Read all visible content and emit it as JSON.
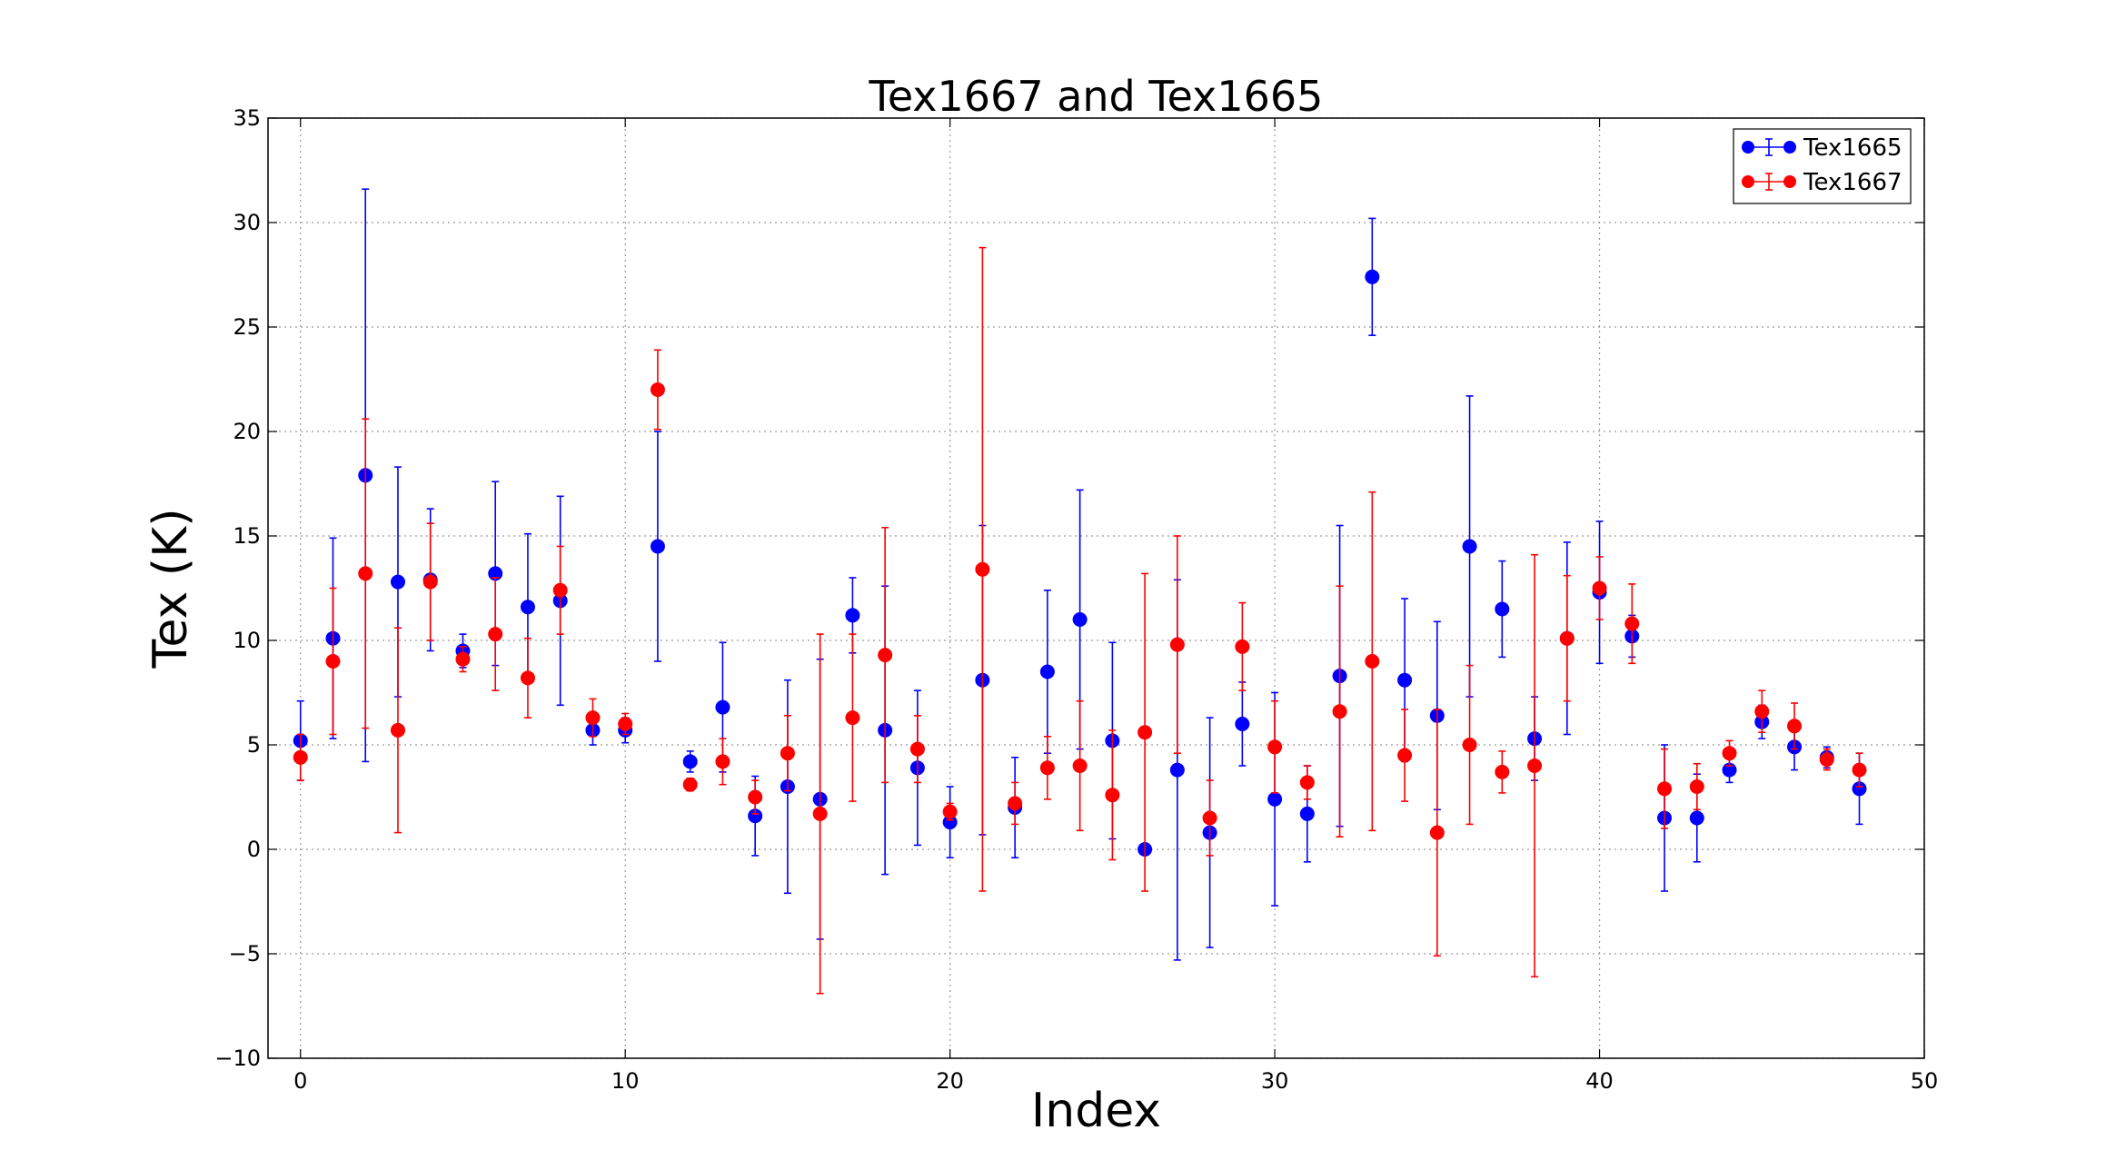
{
  "chart_data": {
    "type": "scatter",
    "title": "Tex1667 and Tex1665",
    "xlabel": "Index",
    "ylabel": "Tex (K)",
    "xlim": [
      -1,
      50
    ],
    "ylim": [
      -10,
      35
    ],
    "xticks": [
      0,
      10,
      20,
      30,
      40,
      50
    ],
    "yticks": [
      -10,
      -5,
      0,
      5,
      10,
      15,
      20,
      25,
      30,
      35
    ],
    "grid": true,
    "legend_position": "top-right",
    "series": [
      {
        "name": "Tex1665",
        "color": "#0000ff",
        "x": [
          0,
          1,
          2,
          3,
          4,
          5,
          6,
          7,
          8,
          9,
          10,
          11,
          12,
          13,
          14,
          15,
          16,
          17,
          18,
          19,
          20,
          21,
          22,
          23,
          24,
          25,
          26,
          27,
          28,
          29,
          30,
          31,
          32,
          33,
          34,
          35,
          36,
          37,
          38,
          39,
          40,
          41,
          42,
          43,
          44,
          45,
          46,
          47,
          48
        ],
        "y": [
          5.2,
          10.1,
          17.9,
          12.8,
          12.9,
          9.5,
          13.2,
          11.6,
          11.9,
          5.7,
          5.7,
          14.5,
          4.2,
          6.8,
          1.6,
          3.0,
          2.4,
          11.2,
          5.7,
          3.9,
          1.3,
          8.1,
          2.0,
          8.5,
          11.0,
          5.2,
          0.0,
          3.8,
          0.8,
          6.0,
          2.4,
          1.7,
          8.3,
          27.4,
          8.1,
          6.4,
          14.5,
          11.5,
          5.3,
          10.1,
          12.3,
          10.2,
          1.5,
          1.5,
          3.8,
          6.1,
          4.9,
          4.4,
          2.9
        ],
        "yerr": [
          1.9,
          4.8,
          13.7,
          5.5,
          3.4,
          0.8,
          4.4,
          3.5,
          5.0,
          0.7,
          0.6,
          5.5,
          0.5,
          3.1,
          1.9,
          5.1,
          6.7,
          1.8,
          6.9,
          3.7,
          1.7,
          7.4,
          2.4,
          3.9,
          6.2,
          4.7,
          0.0,
          9.1,
          5.5,
          2.0,
          5.1,
          2.3,
          7.2,
          2.8,
          3.9,
          4.5,
          7.2,
          2.3,
          2.0,
          4.6,
          3.4,
          1.0,
          3.5,
          2.1,
          0.6,
          0.8,
          1.1,
          0.5,
          1.7
        ]
      },
      {
        "name": "Tex1667",
        "color": "#ff0000",
        "x": [
          0,
          1,
          2,
          3,
          4,
          5,
          6,
          7,
          8,
          9,
          10,
          11,
          12,
          13,
          14,
          15,
          16,
          17,
          18,
          19,
          20,
          21,
          22,
          23,
          24,
          25,
          26,
          27,
          28,
          29,
          30,
          31,
          32,
          33,
          34,
          35,
          36,
          37,
          38,
          39,
          40,
          41,
          42,
          43,
          44,
          45,
          46,
          47,
          48
        ],
        "y": [
          4.4,
          9.0,
          13.2,
          5.7,
          12.8,
          9.1,
          10.3,
          8.2,
          12.4,
          6.3,
          6.0,
          22.0,
          3.1,
          4.2,
          2.5,
          4.6,
          1.7,
          6.3,
          9.3,
          4.8,
          1.8,
          13.4,
          2.2,
          3.9,
          4.0,
          2.6,
          5.6,
          9.8,
          1.5,
          9.7,
          4.9,
          3.2,
          6.6,
          9.0,
          4.5,
          0.8,
          5.0,
          3.7,
          4.0,
          10.1,
          12.5,
          10.8,
          2.9,
          3.0,
          4.6,
          6.6,
          5.9,
          4.3,
          3.8
        ],
        "yerr": [
          1.1,
          3.5,
          7.4,
          4.9,
          2.8,
          0.6,
          2.7,
          1.9,
          2.1,
          0.9,
          0.5,
          1.9,
          0.3,
          1.1,
          0.8,
          1.8,
          8.6,
          4.0,
          6.1,
          1.6,
          0.4,
          15.4,
          1.0,
          1.5,
          3.1,
          3.1,
          7.6,
          5.2,
          1.8,
          2.1,
          2.2,
          0.8,
          6.0,
          8.1,
          2.2,
          5.9,
          3.8,
          1.0,
          10.1,
          3.0,
          1.5,
          1.9,
          1.9,
          1.1,
          0.6,
          1.0,
          1.1,
          0.5,
          0.8
        ]
      }
    ]
  }
}
